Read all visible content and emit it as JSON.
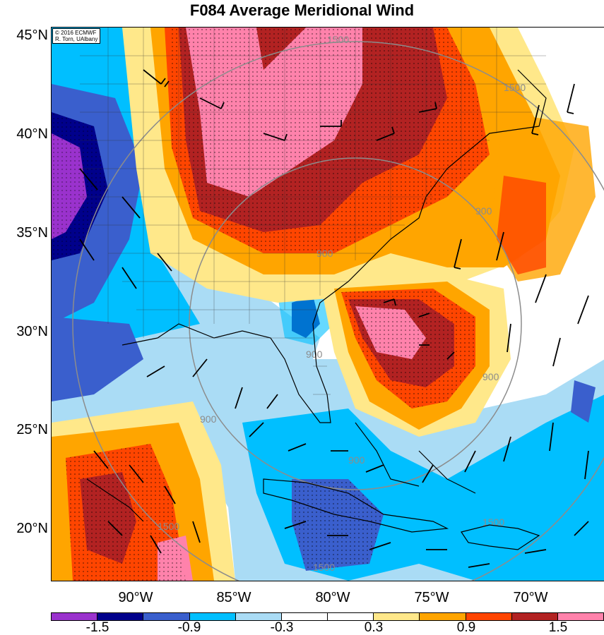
{
  "title": "F084 Average Meridional Wind",
  "credit": {
    "line1": "© 2016 ECMWF",
    "line2": "R. Torn, UAlbany"
  },
  "lat_labels": [
    "45°N",
    "40°N",
    "35°N",
    "30°N",
    "25°N",
    "20°N"
  ],
  "lon_labels": [
    "90°W",
    "85°W",
    "80°W",
    "75°W",
    "70°W"
  ],
  "colorbar": {
    "colors": [
      "#9a32cd",
      "#00008b",
      "#3a5fcd",
      "#00bfff",
      "#aadcf5",
      "#ffffff",
      "#ffffff",
      "#ffe88a",
      "#ffa500",
      "#ff4500",
      "#b22222",
      "#ff82ab"
    ],
    "labels": [
      "-1.5",
      "-0.9",
      "-0.3",
      "0.3",
      "0.9",
      "1.5"
    ]
  },
  "contour_labels": [
    "1500",
    "900",
    "900",
    "900",
    "900",
    "900",
    "900",
    "1500",
    "1500",
    "1500",
    "1500"
  ],
  "legend_colors": {
    "strong_positive": "#ff82ab",
    "positive": "#b22222",
    "moderate_positive": "#ff4500",
    "weak_positive": "#ffa500",
    "slight_positive": "#ffe88a",
    "slight_negative": "#aadcf5",
    "weak_negative": "#00bfff",
    "moderate_negative": "#3a5fcd",
    "strong_negative": "#00008b",
    "very_strong_negative": "#9a32cd"
  }
}
